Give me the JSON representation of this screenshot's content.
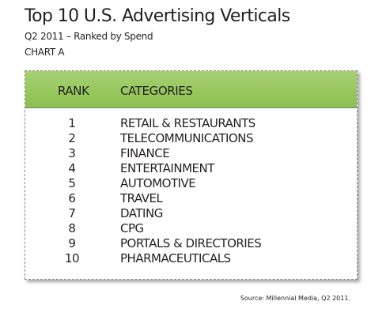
{
  "chart_data": {
    "type": "table",
    "title": "Top 10 U.S. Advertising Verticals",
    "subtitle": "Q2 2011 – Ranked by Spend",
    "label": "CHART A",
    "columns": [
      "RANK",
      "CATEGORIES"
    ],
    "rows": [
      {
        "rank": "1",
        "category": "RETAIL & RESTAURANTS"
      },
      {
        "rank": "2",
        "category": "TELECOMMUNICATIONS"
      },
      {
        "rank": "3",
        "category": "FINANCE"
      },
      {
        "rank": "4",
        "category": "ENTERTAINMENT"
      },
      {
        "rank": "5",
        "category": "AUTOMOTIVE"
      },
      {
        "rank": "6",
        "category": "TRAVEL"
      },
      {
        "rank": "7",
        "category": "DATING"
      },
      {
        "rank": "8",
        "category": "CPG"
      },
      {
        "rank": "9",
        "category": "PORTALS & DIRECTORIES"
      },
      {
        "rank": "10",
        "category": "PHARMACEUTICALS"
      }
    ],
    "source": "Source: Millennial Media, Q2 2011.",
    "header_color": "#95c75e"
  }
}
